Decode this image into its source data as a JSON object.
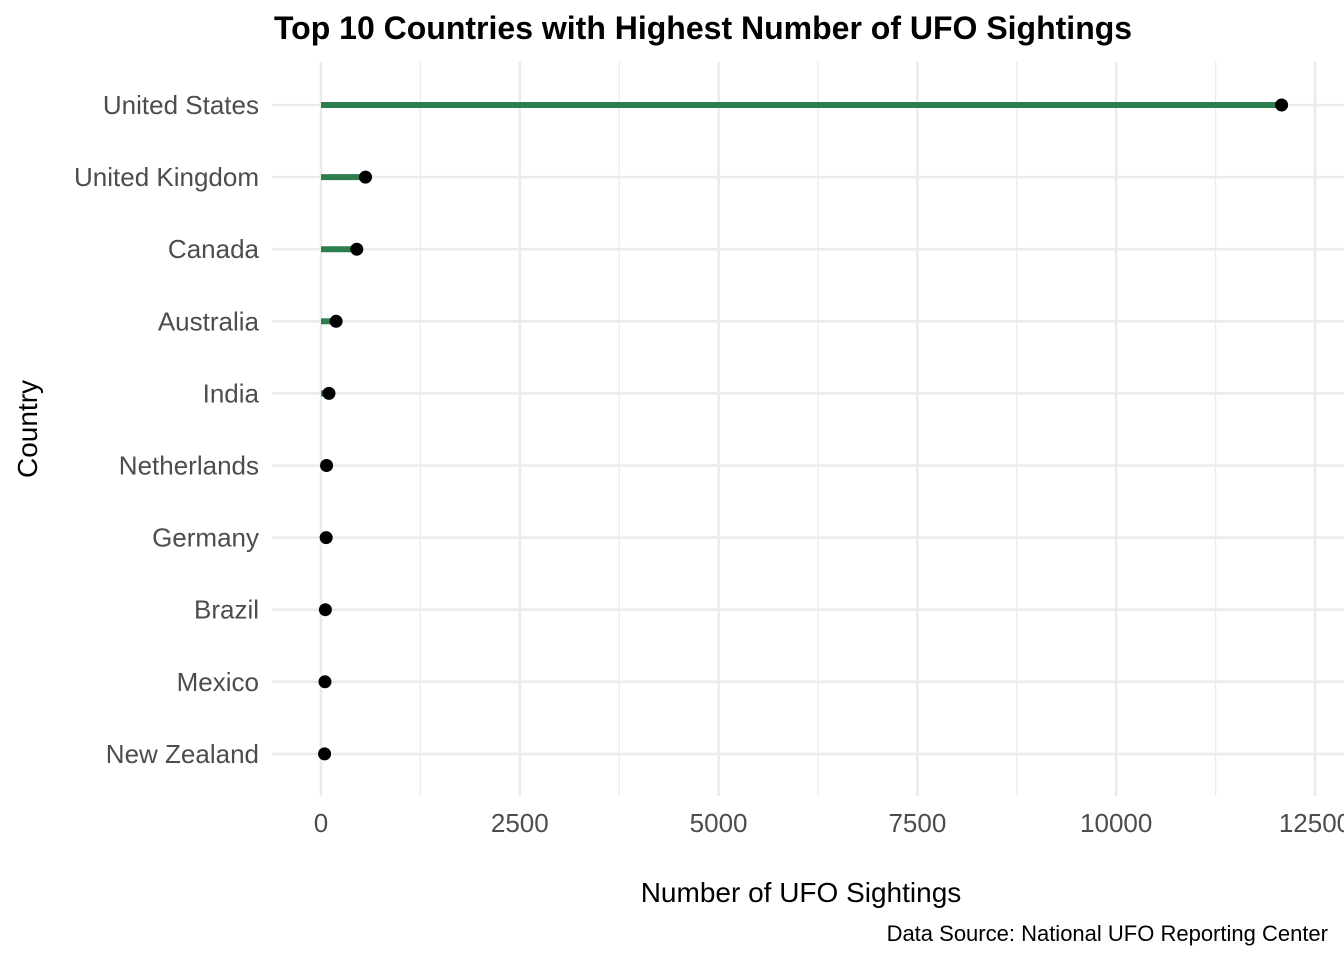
{
  "chart_data": {
    "type": "lollipop",
    "title": "Top 10 Countries with Highest Number of UFO Sightings",
    "xlabel": "Number of UFO Sightings",
    "ylabel": "Country",
    "caption": "Data Source: National UFO Reporting Center",
    "categories": [
      "United States",
      "United Kingdom",
      "Canada",
      "Australia",
      "India",
      "Netherlands",
      "Germany",
      "Brazil",
      "Mexico",
      "New Zealand"
    ],
    "values": [
      12080,
      560,
      450,
      190,
      100,
      70,
      65,
      55,
      50,
      45
    ],
    "xlim": [
      0,
      12500
    ],
    "x_ticks": [
      0,
      2500,
      5000,
      7500,
      10000,
      12500
    ],
    "x_tick_labels": [
      "0",
      "2500",
      "5000",
      "7500",
      "10000",
      "12500"
    ],
    "orientation": "horizontal",
    "grid": true,
    "colors": {
      "stem": "#2e7d4f",
      "point": "#000000",
      "grid": "#ebebeb",
      "tick_text": "#4d4d4d",
      "background": "#ffffff"
    }
  }
}
